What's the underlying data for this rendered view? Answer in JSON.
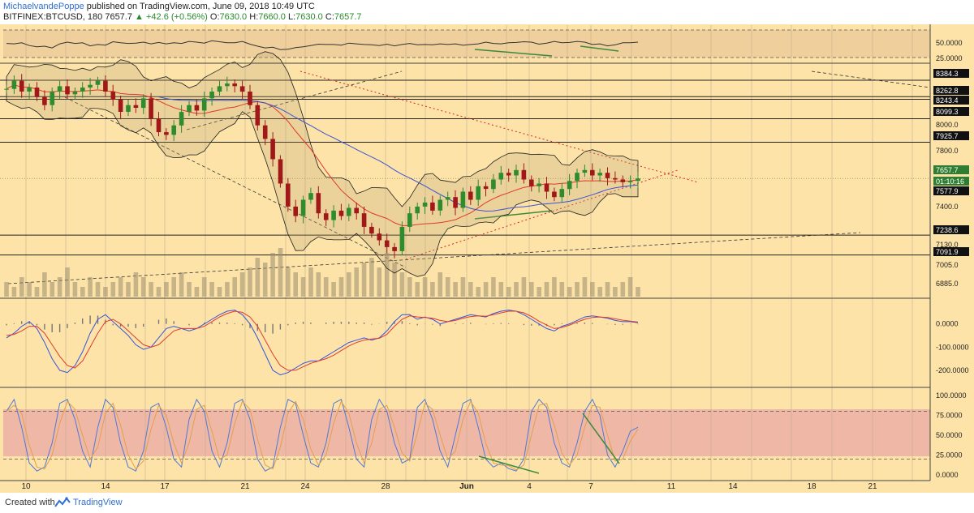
{
  "header": {
    "author": "MichaelvandePoppe",
    "published": "published on TradingView.com, June 09, 2018 10:49 UTC",
    "symbol": "BITFINEX:BTCUSD, 180",
    "last": "7657.7",
    "change": "+42.6 (+0.56%)",
    "o_label": "O:",
    "o": "7630.0",
    "h_label": "H:",
    "h": "7660.0",
    "l_label": "L:",
    "l": "7630.0",
    "c_label": "C:",
    "c": "7657.7"
  },
  "footer": {
    "created_with": "Created with",
    "brand": "TradingView"
  },
  "colors": {
    "background": "#fde3a7",
    "rsi_band": "#efcf9c",
    "stoch_band": "#efb8a6",
    "candle_up": "#2e8b2e",
    "candle_down": "#a01818",
    "ma_red": "#e0392b",
    "ma_blue": "#3b54d6",
    "macd_line": "#3355dd",
    "signal_line": "#e23b2e",
    "divergence": "#3d8a3d"
  },
  "chart_data": [
    {
      "type": "line",
      "name": "rsi",
      "ticks": [
        "50.0000",
        "25.0000"
      ],
      "ylim": [
        0,
        100
      ],
      "values": [
        58,
        57,
        60,
        52,
        48,
        50,
        45,
        57,
        62,
        58,
        60,
        51,
        55,
        53,
        63,
        60,
        58,
        59,
        62,
        57,
        61,
        57,
        60,
        58,
        64,
        62,
        59,
        66,
        63,
        60,
        60,
        64,
        56,
        50,
        45,
        47,
        40,
        41,
        46,
        48,
        52,
        56,
        55,
        55,
        53,
        59,
        57,
        55,
        54,
        52,
        56,
        51,
        55,
        58,
        54,
        55,
        54,
        57,
        55,
        57,
        53,
        55,
        57,
        62,
        58,
        57,
        60,
        61,
        63,
        62,
        56,
        59,
        64,
        60,
        61,
        64,
        62,
        55,
        57,
        51,
        54,
        60,
        60,
        62
      ]
    },
    {
      "type": "candlestick",
      "name": "price",
      "ylim": [
        6820,
        8450
      ],
      "x_labels": [
        "10",
        "14",
        "17",
        "21",
        "24",
        "28",
        "Jun",
        "4",
        "7",
        "11",
        "14",
        "18",
        "21"
      ],
      "ticks": [
        "8384.3",
        "8262.8",
        "8243.4",
        "8099.3",
        "8000.0",
        "7925.7",
        "7800.0",
        "7657.7",
        "01:10:16",
        "7577.9",
        "7400.0",
        "7238.6",
        "7130.0",
        "7091.9",
        "7005.0",
        "6885.0"
      ],
      "levels": [
        8384.3,
        8262.8,
        8243.4,
        8099.3,
        7925.7,
        7238.6,
        7091.9
      ],
      "closes": [
        8320,
        8380,
        8300,
        8330,
        8260,
        8200,
        8300,
        8340,
        8280,
        8300,
        8330,
        8350,
        8380,
        8300,
        8240,
        8150,
        8200,
        8180,
        8250,
        8100,
        8000,
        7980,
        8050,
        8150,
        8200,
        8160,
        8250,
        8300,
        8340,
        8360,
        8340,
        8300,
        8200,
        8050,
        7950,
        7800,
        7620,
        7450,
        7380,
        7500,
        7550,
        7400,
        7350,
        7420,
        7380,
        7440,
        7400,
        7300,
        7250,
        7200,
        7150,
        7120,
        7300,
        7400,
        7450,
        7480,
        7420,
        7500,
        7520,
        7440,
        7560,
        7500,
        7600,
        7580,
        7650,
        7700,
        7680,
        7720,
        7650,
        7600,
        7620,
        7560,
        7520,
        7580,
        7640,
        7700,
        7720,
        7680,
        7700,
        7660,
        7650,
        7630,
        7640,
        7657.7
      ]
    },
    {
      "type": "bar",
      "name": "volume",
      "values": [
        3,
        2,
        4,
        3,
        2,
        5,
        3,
        4,
        6,
        3,
        2,
        4,
        3,
        2,
        3,
        4,
        3,
        5,
        4,
        3,
        2,
        3,
        4,
        5,
        3,
        2,
        4,
        3,
        2,
        3,
        4,
        5,
        6,
        8,
        7,
        9,
        10,
        6,
        5,
        4,
        6,
        5,
        4,
        3,
        4,
        5,
        6,
        7,
        8,
        6,
        9,
        7,
        5,
        4,
        3,
        4,
        3,
        5,
        4,
        3,
        4,
        3,
        2,
        3,
        4,
        3,
        2,
        3,
        4,
        3,
        2,
        3,
        4,
        3,
        2,
        3,
        4,
        3,
        2,
        3,
        2,
        3,
        4,
        2
      ]
    },
    {
      "type": "line",
      "name": "macd",
      "ticks": [
        "0.0000",
        "-100.0000",
        "-200.0000"
      ],
      "ylim": [
        -260,
        90
      ],
      "values": [
        -60,
        -40,
        -10,
        10,
        -20,
        -80,
        -150,
        -200,
        -210,
        -180,
        -120,
        -40,
        20,
        40,
        10,
        -20,
        -50,
        -90,
        -110,
        -100,
        -60,
        -20,
        -10,
        -20,
        -30,
        -20,
        0,
        20,
        40,
        55,
        60,
        40,
        0,
        -60,
        -130,
        -200,
        -220,
        -210,
        -190,
        -170,
        -160,
        -160,
        -140,
        -120,
        -100,
        -80,
        -70,
        -60,
        -70,
        -60,
        -30,
        10,
        40,
        40,
        20,
        30,
        20,
        0,
        10,
        20,
        30,
        40,
        35,
        30,
        45,
        55,
        60,
        55,
        40,
        20,
        0,
        -20,
        -30,
        -10,
        0,
        15,
        30,
        35,
        30,
        25,
        15,
        10,
        10,
        5
      ]
    },
    {
      "type": "line",
      "name": "macd_signal",
      "values": [
        -50,
        -45,
        -30,
        -10,
        -10,
        -40,
        -90,
        -140,
        -180,
        -190,
        -160,
        -100,
        -40,
        10,
        20,
        0,
        -30,
        -60,
        -90,
        -100,
        -90,
        -60,
        -30,
        -20,
        -20,
        -20,
        -10,
        10,
        30,
        45,
        55,
        50,
        30,
        -10,
        -70,
        -130,
        -180,
        -200,
        -200,
        -185,
        -170,
        -160,
        -150,
        -135,
        -115,
        -95,
        -80,
        -70,
        -65,
        -62,
        -45,
        -10,
        20,
        35,
        30,
        28,
        25,
        15,
        10,
        15,
        25,
        32,
        35,
        33,
        40,
        48,
        55,
        55,
        48,
        32,
        12,
        -5,
        -20,
        -15,
        -5,
        8,
        20,
        28,
        30,
        28,
        22,
        16,
        12,
        8
      ]
    },
    {
      "type": "line",
      "name": "stoch",
      "ticks": [
        "100.0000",
        "75.0000",
        "50.0000",
        "25.0000",
        "0.0000"
      ],
      "ylim": [
        -5,
        105
      ],
      "values": [
        80,
        95,
        60,
        15,
        5,
        10,
        40,
        90,
        95,
        70,
        30,
        10,
        60,
        95,
        85,
        40,
        10,
        5,
        30,
        85,
        90,
        60,
        20,
        10,
        70,
        95,
        80,
        30,
        10,
        40,
        90,
        95,
        70,
        20,
        5,
        10,
        60,
        95,
        90,
        50,
        15,
        10,
        40,
        90,
        95,
        60,
        20,
        10,
        70,
        95,
        80,
        40,
        15,
        20,
        85,
        95,
        70,
        30,
        10,
        50,
        90,
        95,
        60,
        20,
        10,
        15,
        8,
        5,
        20,
        80,
        95,
        85,
        40,
        15,
        10,
        40,
        80,
        95,
        75,
        25,
        10,
        30,
        55,
        60
      ]
    }
  ]
}
